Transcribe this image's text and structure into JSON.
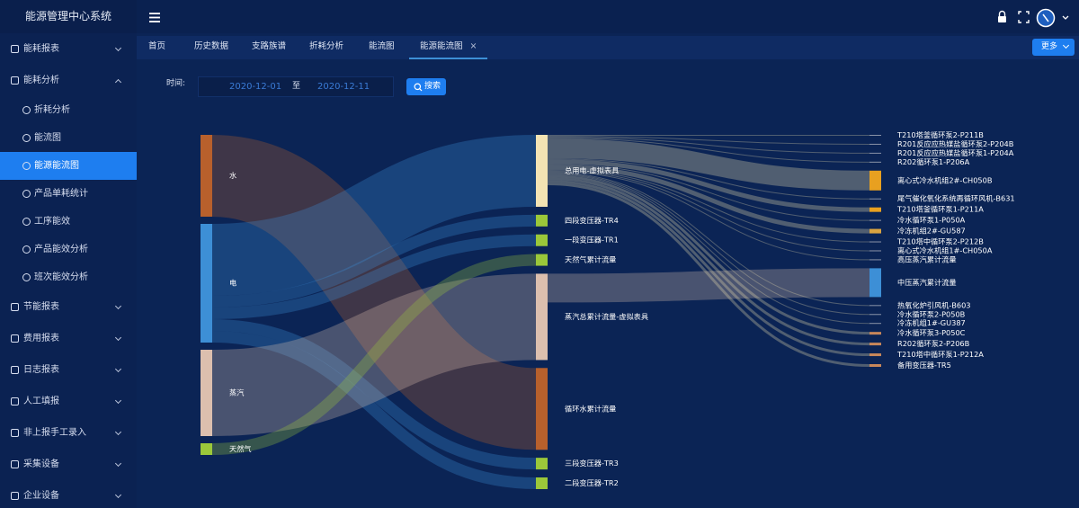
{
  "sidebar": {
    "title": "能源管理中心系统",
    "menu": [
      {
        "label": "能耗报表"
      },
      {
        "label": "能耗分析",
        "children": [
          {
            "label": "折耗分析"
          },
          {
            "label": "能流图"
          },
          {
            "label": "能源能流图",
            "active": true
          },
          {
            "label": "产品单耗统计"
          },
          {
            "label": "工序能效"
          },
          {
            "label": "产品能效分析"
          },
          {
            "label": "班次能效分析"
          }
        ]
      },
      {
        "label": "节能报表"
      },
      {
        "label": "费用报表"
      },
      {
        "label": "日志报表"
      },
      {
        "label": "人工填报"
      },
      {
        "label": "非上报手工录入"
      },
      {
        "label": "采集设备"
      },
      {
        "label": "企业设备"
      }
    ]
  },
  "tabs": [
    {
      "label": "首页"
    },
    {
      "label": "历史数据"
    },
    {
      "label": "支路族谱"
    },
    {
      "label": "折耗分析"
    },
    {
      "label": "能流图"
    },
    {
      "label": "能源能流图",
      "active": true,
      "close": "×"
    }
  ],
  "more": "更多",
  "filter": {
    "label": "时间:",
    "start": "2020-12-01",
    "to": "至",
    "end": "2020-12-11",
    "button": "搜索"
  },
  "sankey": {
    "columns": [
      [
        {
          "name": "水",
          "color": "#b8602c"
        },
        {
          "name": "电",
          "color": "#3d8fd6"
        },
        {
          "name": "蒸汽",
          "color": "#dcbfae"
        },
        {
          "name": "天然气",
          "color": "#9bc83a"
        }
      ],
      [
        {
          "name": "总用电-虚拟表具",
          "color": "#f3e3b3"
        },
        {
          "name": "四段变压器-TR4",
          "color": "#9bc83a"
        },
        {
          "name": "一段变压器-TR1",
          "color": "#9bc83a"
        },
        {
          "name": "天然气累计流量",
          "color": "#9bc83a"
        },
        {
          "name": "蒸汽总累计流量-虚拟表具",
          "color": "#dcbfae"
        },
        {
          "name": "循环水累计流量",
          "color": "#b8602c"
        },
        {
          "name": "三段变压器-TR3",
          "color": "#9bc83a"
        },
        {
          "name": "二段变压器-TR2",
          "color": "#9bc83a"
        }
      ],
      [
        {
          "name": "T210塔釜循环泵2-P211B",
          "color": "#8a93a8"
        },
        {
          "name": "R201反应应热媒盐循环泵2-P204B",
          "color": "#8a93a8"
        },
        {
          "name": "R201反应应热媒盐循环泵1-P204A",
          "color": "#8a93a8"
        },
        {
          "name": "R202循环泵1-P206A",
          "color": "#8a93a8"
        },
        {
          "name": "离心式冷水机组2#-CH050B",
          "color": "#e8a020"
        },
        {
          "name": "尾气催化氧化系统再循环风机-B631",
          "color": "#8a93a8"
        },
        {
          "name": "T210塔釜循环泵1-P211A",
          "color": "#e8a020"
        },
        {
          "name": "冷水循环泵1-P050A",
          "color": "#8a93a8"
        },
        {
          "name": "冷冻机组2#-GU587",
          "color": "#d9a441"
        },
        {
          "name": "T210塔中循环泵2-P212B",
          "color": "#8a93a8"
        },
        {
          "name": "离心式冷水机组1#-CH050A",
          "color": "#8a93a8"
        },
        {
          "name": "高压蒸汽累计流量",
          "color": "#8a93a8"
        },
        {
          "name": "中压蒸汽累计流量",
          "color": "#3d8fd6"
        },
        {
          "name": "热氧化炉引风机-B603",
          "color": "#8a93a8"
        },
        {
          "name": "冷水循环泵2-P050B",
          "color": "#8a93a8"
        },
        {
          "name": "冷冻机组1#-GU387",
          "color": "#8a93a8"
        },
        {
          "name": "冷水循环泵3-P050C",
          "color": "#c8875a"
        },
        {
          "name": "R202循环泵2-P206B",
          "color": "#c8875a"
        },
        {
          "name": "T210塔中循环泵1-P212A",
          "color": "#c8875a"
        },
        {
          "name": "备用变压器-TR5",
          "color": "#c8875a"
        }
      ]
    ],
    "links": [
      {
        "source": "水",
        "target": "循环水累计流量",
        "value": 91
      },
      {
        "source": "电",
        "target": "总用电-虚拟表具",
        "value": 80
      },
      {
        "source": "电",
        "target": "四段变压器-TR4",
        "value": 13
      },
      {
        "source": "电",
        "target": "一段变压器-TR1",
        "value": 13
      },
      {
        "source": "电",
        "target": "三段变压器-TR3",
        "value": 13
      },
      {
        "source": "电",
        "target": "二段变压器-TR2",
        "value": 13
      },
      {
        "source": "蒸汽",
        "target": "蒸汽总累计流量-虚拟表具",
        "value": 96
      },
      {
        "source": "天然气",
        "target": "天然气累计流量",
        "value": 13
      },
      {
        "source": "总用电-虚拟表具",
        "target": "T210塔釜循环泵2-P211B",
        "value": 1
      },
      {
        "source": "总用电-虚拟表具",
        "target": "R201反应应热媒盐循环泵2-P204B",
        "value": 1
      },
      {
        "source": "总用电-虚拟表具",
        "target": "R201反应应热媒盐循环泵1-P204A",
        "value": 1
      },
      {
        "source": "总用电-虚拟表具",
        "target": "R202循环泵1-P206A",
        "value": 1
      },
      {
        "source": "总用电-虚拟表具",
        "target": "离心式冷水机组2#-CH050B",
        "value": 22
      },
      {
        "source": "总用电-虚拟表具",
        "target": "尾气催化氧化系统再循环风机-B631",
        "value": 1
      },
      {
        "source": "总用电-虚拟表具",
        "target": "T210塔釜循环泵1-P211A",
        "value": 5
      },
      {
        "source": "总用电-虚拟表具",
        "target": "冷水循环泵1-P050A",
        "value": 1
      },
      {
        "source": "总用电-虚拟表具",
        "target": "冷冻机组2#-GU587",
        "value": 5
      },
      {
        "source": "总用电-虚拟表具",
        "target": "T210塔中循环泵2-P212B",
        "value": 1
      },
      {
        "source": "总用电-虚拟表具",
        "target": "离心式冷水机组1#-CH050A",
        "value": 1
      },
      {
        "source": "总用电-虚拟表具",
        "target": "高压蒸汽累计流量",
        "value": 1
      },
      {
        "source": "蒸汽总累计流量-虚拟表具",
        "target": "中压蒸汽累计流量",
        "value": 32
      },
      {
        "source": "总用电-虚拟表具",
        "target": "热氧化炉引风机-B603",
        "value": 1
      },
      {
        "source": "总用电-虚拟表具",
        "target": "冷水循环泵2-P050B",
        "value": 1
      },
      {
        "source": "总用电-虚拟表具",
        "target": "冷冻机组1#-GU387",
        "value": 1
      },
      {
        "source": "总用电-虚拟表具",
        "target": "冷水循环泵3-P050C",
        "value": 3
      },
      {
        "source": "总用电-虚拟表具",
        "target": "R202循环泵2-P206B",
        "value": 3
      },
      {
        "source": "总用电-虚拟表具",
        "target": "T210塔中循环泵1-P212A",
        "value": 3
      },
      {
        "source": "总用电-虚拟表具",
        "target": "备用变压器-TR5",
        "value": 3
      }
    ]
  }
}
